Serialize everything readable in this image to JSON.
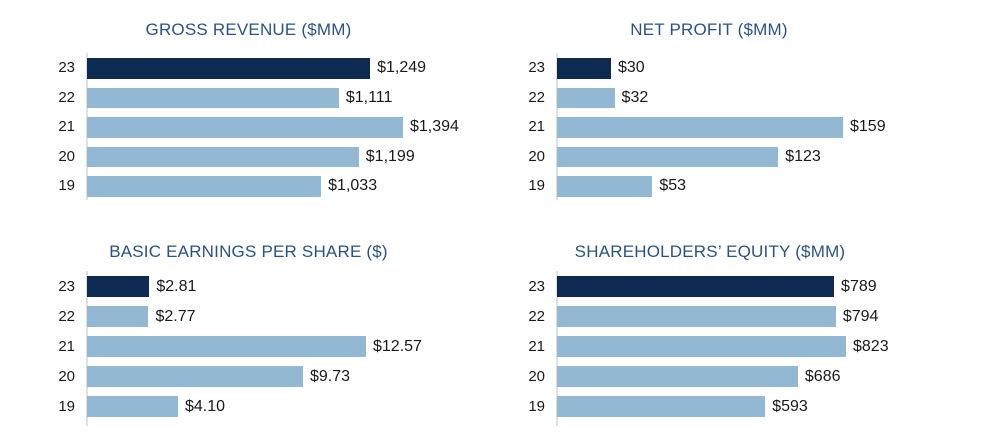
{
  "colors": {
    "background": "#ffffff",
    "highlight_bar": "#0d2a52",
    "bar": "#92b8d4",
    "title_text": "#2a5385",
    "label_text": "#1a1a1a",
    "axis_line": "#dde1e5"
  },
  "chart_data": [
    {
      "type": "bar",
      "orientation": "horizontal",
      "title": "GROSS REVENUE ($MM)",
      "categories": [
        "23",
        "22",
        "21",
        "20",
        "19"
      ],
      "values": [
        1249,
        1111,
        1394,
        1199,
        1033
      ],
      "value_labels": [
        "$1,249",
        "$1,111",
        "$1,394",
        "$1,199",
        "$1,033"
      ],
      "highlight_index": 0,
      "xlim": [
        0,
        1394
      ],
      "grid": false,
      "legend": false
    },
    {
      "type": "bar",
      "orientation": "horizontal",
      "title": "NET PROFIT ($MM)",
      "categories": [
        "23",
        "22",
        "21",
        "20",
        "19"
      ],
      "values": [
        30,
        32,
        159,
        123,
        53
      ],
      "value_labels": [
        "$30",
        "$32",
        "$159",
        "$123",
        "$53"
      ],
      "highlight_index": 0,
      "xlim": [
        0,
        159
      ],
      "grid": false,
      "legend": false
    },
    {
      "type": "bar",
      "orientation": "horizontal",
      "title": "BASIC EARNINGS PER SHARE ($)",
      "categories": [
        "23",
        "22",
        "21",
        "20",
        "19"
      ],
      "values": [
        2.81,
        2.77,
        12.57,
        9.73,
        4.1
      ],
      "value_labels": [
        "$2.81",
        "$2.77",
        "$12.57",
        "$9.73",
        "$4.10"
      ],
      "highlight_index": 0,
      "xlim": [
        0,
        12.57
      ],
      "grid": false,
      "legend": false
    },
    {
      "type": "bar",
      "orientation": "horizontal",
      "title": "SHAREHOLDERS’ EQUITY ($MM)",
      "categories": [
        "23",
        "22",
        "21",
        "20",
        "19"
      ],
      "values": [
        789,
        794,
        823,
        686,
        593
      ],
      "value_labels": [
        "$789",
        "$794",
        "$823",
        "$686",
        "$593"
      ],
      "highlight_index": 0,
      "xlim": [
        0,
        823
      ],
      "grid": false,
      "legend": false
    }
  ]
}
